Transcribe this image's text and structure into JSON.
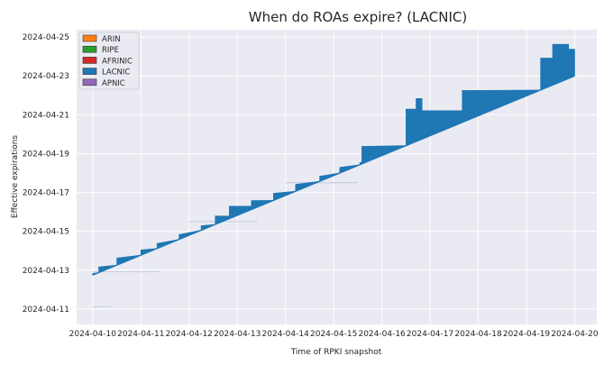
{
  "chart_data": {
    "type": "area",
    "title": "When do ROAs expire? (LACNIC)",
    "xlabel": "Time of RPKI snapshot",
    "ylabel": "Effective expirations",
    "x_ticks": [
      "2024-04-10",
      "2024-04-11",
      "2024-04-12",
      "2024-04-13",
      "2024-04-14",
      "2024-04-15",
      "2024-04-16",
      "2024-04-17",
      "2024-04-18",
      "2024-04-19",
      "2024-04-20"
    ],
    "y_ticks": [
      "2024-04-11",
      "2024-04-13",
      "2024-04-15",
      "2024-04-17",
      "2024-04-19",
      "2024-04-21",
      "2024-04-23",
      "2024-04-25"
    ],
    "xlim": [
      "2024-04-09T16:00",
      "2024-04-20T11:00"
    ],
    "ylim": [
      "2024-04-10T05:00",
      "2024-04-25T09:00"
    ],
    "grid": true,
    "legend_position": "top-left",
    "legend": [
      {
        "name": "ARIN",
        "color": "#ff7f0e"
      },
      {
        "name": "RIPE",
        "color": "#2ca02c"
      },
      {
        "name": "AFRINIC",
        "color": "#d62728"
      },
      {
        "name": "LACNIC",
        "color": "#1f77b4"
      },
      {
        "name": "APNIC",
        "color": "#9467bd"
      }
    ],
    "series": [
      {
        "name": "LACNIC",
        "color": "#1f77b4",
        "band_lower": [
          {
            "x": "2024-04-10T00:00",
            "y": "2024-04-12T18:00"
          },
          {
            "x": "2024-04-20T00:00",
            "y": "2024-04-23T00:00"
          }
        ],
        "steps": [
          {
            "x0": "2024-04-10T00:00",
            "x1": "2024-04-10T03:00",
            "y": "2024-04-12T20:00"
          },
          {
            "x0": "2024-04-10T03:00",
            "x1": "2024-04-10T12:00",
            "y": "2024-04-13T04:00"
          },
          {
            "x0": "2024-04-10T12:00",
            "x1": "2024-04-11T00:00",
            "y": "2024-04-13T15:00"
          },
          {
            "x0": "2024-04-11T00:00",
            "x1": "2024-04-11T08:00",
            "y": "2024-04-14T01:00"
          },
          {
            "x0": "2024-04-11T08:00",
            "x1": "2024-04-11T19:00",
            "y": "2024-04-14T09:00"
          },
          {
            "x0": "2024-04-11T19:00",
            "x1": "2024-04-12T06:00",
            "y": "2024-04-14T20:00"
          },
          {
            "x0": "2024-04-12T06:00",
            "x1": "2024-04-12T13:00",
            "y": "2024-04-15T07:00"
          },
          {
            "x0": "2024-04-12T13:00",
            "x1": "2024-04-12T20:00",
            "y": "2024-04-15T19:00"
          },
          {
            "x0": "2024-04-12T20:00",
            "x1": "2024-04-13T07:00",
            "y": "2024-04-16T07:00"
          },
          {
            "x0": "2024-04-13T07:00",
            "x1": "2024-04-13T18:00",
            "y": "2024-04-16T14:00"
          },
          {
            "x0": "2024-04-13T18:00",
            "x1": "2024-04-14T05:00",
            "y": "2024-04-16T23:00"
          },
          {
            "x0": "2024-04-14T05:00",
            "x1": "2024-04-14T17:00",
            "y": "2024-04-17T10:00"
          },
          {
            "x0": "2024-04-14T17:00",
            "x1": "2024-04-15T03:00",
            "y": "2024-04-17T20:00"
          },
          {
            "x0": "2024-04-15T03:00",
            "x1": "2024-04-15T13:00",
            "y": "2024-04-18T07:00"
          },
          {
            "x0": "2024-04-15T13:00",
            "x1": "2024-04-15T14:00",
            "y": "2024-04-18T13:00"
          },
          {
            "x0": "2024-04-15T14:00",
            "x1": "2024-04-16T12:00",
            "y": "2024-04-19T09:00"
          },
          {
            "x0": "2024-04-16T12:00",
            "x1": "2024-04-16T17:00",
            "y": "2024-04-21T07:00"
          },
          {
            "x0": "2024-04-16T17:00",
            "x1": "2024-04-16T20:00",
            "y": "2024-04-21T20:00"
          },
          {
            "x0": "2024-04-16T20:00",
            "x1": "2024-04-17T16:00",
            "y": "2024-04-21T05:00"
          },
          {
            "x0": "2024-04-17T16:00",
            "x1": "2024-04-19T07:00",
            "y": "2024-04-22T06:00"
          },
          {
            "x0": "2024-04-19T07:00",
            "x1": "2024-04-19T13:00",
            "y": "2024-04-23T22:00"
          },
          {
            "x0": "2024-04-19T13:00",
            "x1": "2024-04-19T21:00",
            "y": "2024-04-24T15:00"
          },
          {
            "x0": "2024-04-19T21:00",
            "x1": "2024-04-20T00:00",
            "y": "2024-04-24T09:00"
          }
        ]
      }
    ],
    "faint_lines": [
      {
        "x0": "2024-04-10T00:00",
        "x1": "2024-04-10T09:00",
        "y": "2024-04-11T03:00"
      },
      {
        "x0": "2024-04-10T00:00",
        "x1": "2024-04-11T09:00",
        "y": "2024-04-12T22:00"
      },
      {
        "x0": "2024-04-12T00:00",
        "x1": "2024-04-13T10:00",
        "y": "2024-04-15T12:00"
      },
      {
        "x0": "2024-04-14T00:00",
        "x1": "2024-04-15T12:00",
        "y": "2024-04-17T12:00"
      }
    ]
  }
}
